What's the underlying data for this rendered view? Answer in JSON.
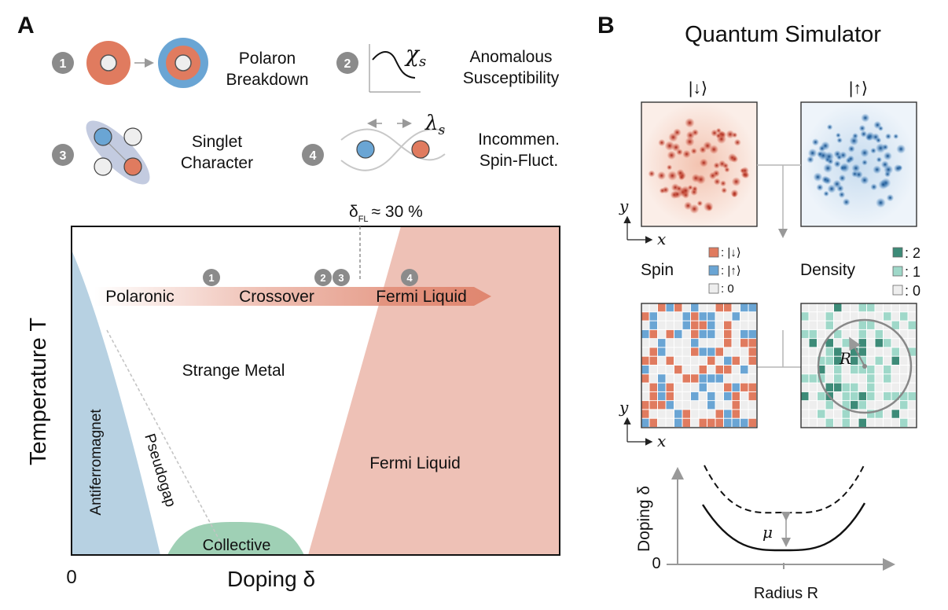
{
  "panel_a": {
    "label": "A",
    "mechanisms": [
      {
        "num": "1",
        "line1": "Polaron",
        "line2": "Breakdown"
      },
      {
        "num": "2",
        "line1": "Anomalous",
        "line2": "Susceptibility",
        "symbol": "χ",
        "symbol_sub": "s"
      },
      {
        "num": "3",
        "line1": "Singlet",
        "line2": "Character"
      },
      {
        "num": "4",
        "line1": "Incommen.",
        "line2": "Spin-Fluct.",
        "symbol": "λ",
        "symbol_sub": "s"
      }
    ],
    "phase_diagram": {
      "delta_fl_symbol": "δ",
      "delta_fl_sub": "FL",
      "delta_fl_value": "≈ 30 %",
      "arrow_labels": [
        "Polaronic",
        "Crossover",
        "Fermi Liquid"
      ],
      "arrow_markers": [
        "1",
        "2",
        "3",
        "4"
      ],
      "regions": [
        "Strange Metal",
        "Antiferromagnet",
        "Pseudogap",
        "Collective",
        "Fermi Liquid"
      ],
      "y_label": "Temperature T",
      "x_label": "Doping δ",
      "x_origin": "0",
      "colors": {
        "afm": "#b7d1e2",
        "collective": "#9fd0b5",
        "fermi": "#eec1b6",
        "arrow": "#e0866f"
      }
    }
  },
  "panel_b": {
    "label": "B",
    "title": "Quantum Simulator",
    "image_titles": [
      "|↓⟩",
      "|↑⟩"
    ],
    "axis_x": "x",
    "axis_y": "y",
    "spin_title": "Spin",
    "spin_legend": [
      {
        "label": ": |↓⟩",
        "color": "#e07b5f"
      },
      {
        "label": ": |↑⟩",
        "color": "#6aa5d4"
      },
      {
        "label": ": 0",
        "color": "#eeeeee"
      }
    ],
    "density_title": "Density",
    "density_legend": [
      {
        "label": ": 2",
        "color": "#3d8b78"
      },
      {
        "label": ": 1",
        "color": "#9fd8c9"
      },
      {
        "label": ": 0",
        "color": "#eeeeee"
      }
    ],
    "radius_label": "R",
    "bottom_plot": {
      "y_label": "Doping δ",
      "x_label": "Radius R",
      "origin": "0",
      "mu_label": "μ"
    }
  }
}
